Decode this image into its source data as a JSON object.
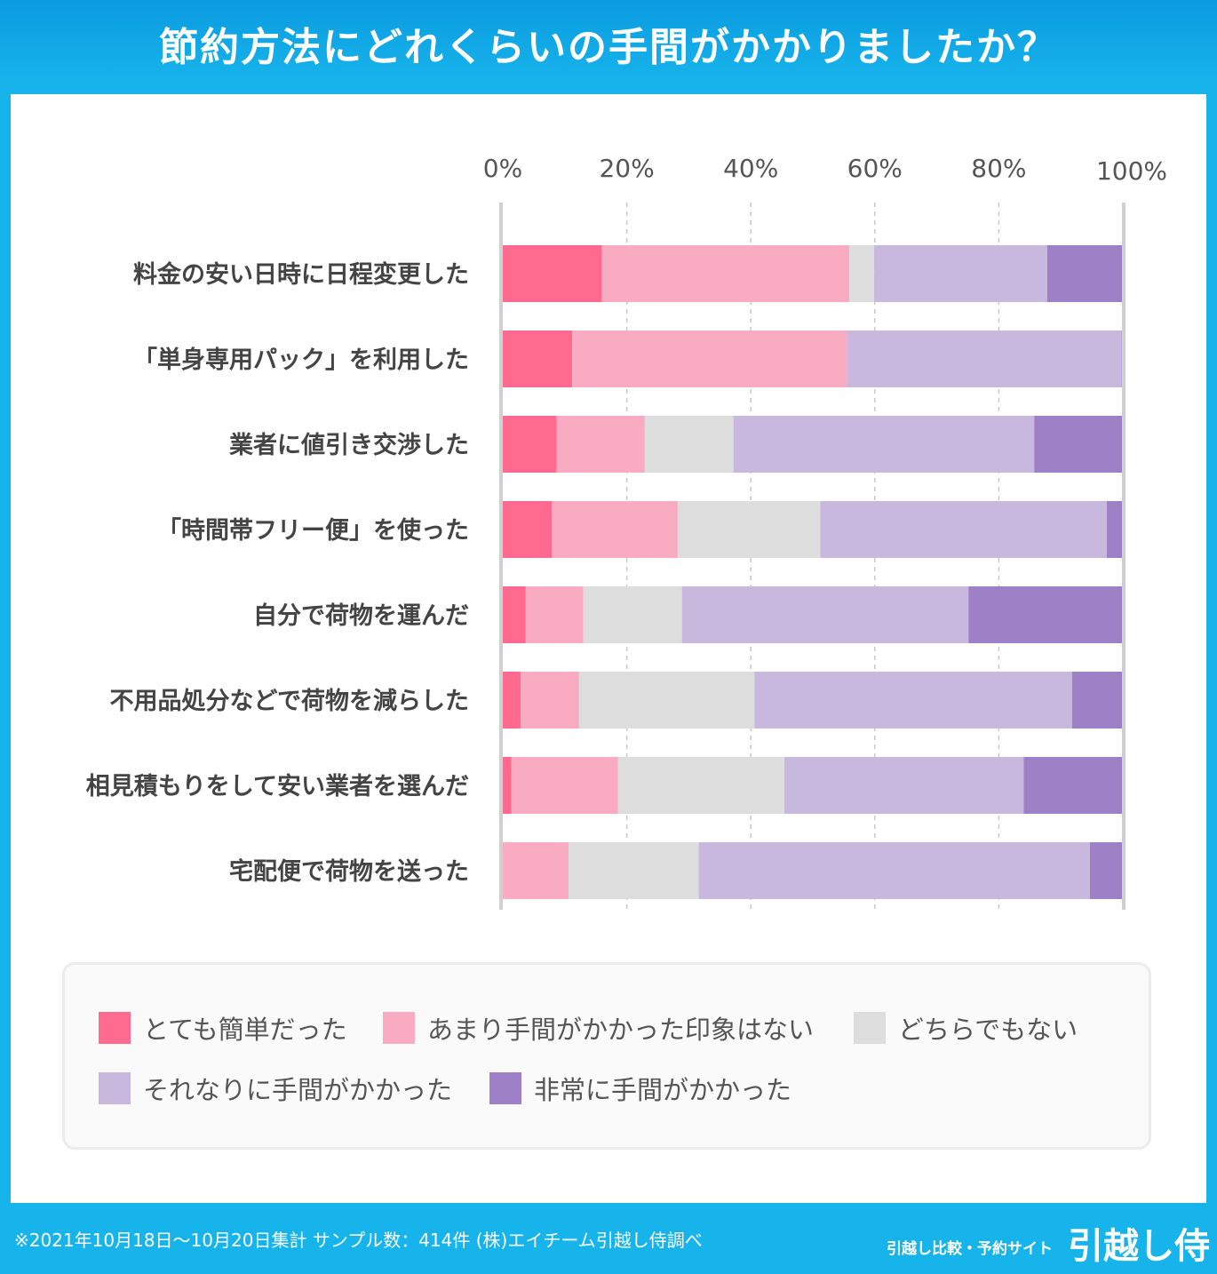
{
  "header": {
    "title": "節約方法にどれくらいの手間がかかりましたか？"
  },
  "chart_data": {
    "type": "bar",
    "orientation": "horizontal",
    "stacked": true,
    "categories": [
      "料金の安い日時に日程変更した",
      "「単身専用パック」を利用した",
      "業者に値引き交渉した",
      "「時間帯フリー便」を使った",
      "自分で荷物を運んだ",
      "不用品処分などで荷物を減らした",
      "相見積もりをして安い業者を選んだ",
      "宅配便で荷物を送った"
    ],
    "series": [
      {
        "name": "とても簡単だった",
        "color": "#ff6a8e",
        "values": [
          16.0,
          11.2,
          8.7,
          7.9,
          3.7,
          2.9,
          1.4,
          0.0
        ]
      },
      {
        "name": "あまり手間がかかった印象はない",
        "color": "#f9abc1",
        "values": [
          39.9,
          44.3,
          14.2,
          20.3,
          9.3,
          9.4,
          17.2,
          10.6
        ]
      },
      {
        "name": "どちらでもない",
        "color": "#dddddd",
        "values": [
          4.0,
          0.0,
          14.3,
          23.0,
          15.9,
          28.3,
          26.8,
          21.0
        ]
      },
      {
        "name": "それなりに手間がかかった",
        "color": "#c9b8de",
        "values": [
          27.9,
          44.3,
          48.5,
          46.2,
          46.2,
          51.2,
          38.6,
          63.1
        ]
      },
      {
        "name": "非常に手間がかかった",
        "color": "#9e80c6",
        "values": [
          12.2,
          0.2,
          14.3,
          2.6,
          24.8,
          8.2,
          15.9,
          5.3
        ]
      }
    ],
    "xlim": [
      0,
      100
    ],
    "xticks": [
      "0%",
      "20%",
      "40%",
      "60%",
      "80%",
      "100%"
    ],
    "grid": true,
    "legend_position": "bottom"
  },
  "footer": {
    "note": "※2021年10月18日〜10月20日集計 サンプル数：414件 (株)エイチーム引越し侍調べ",
    "brand_sub": "引越し比較・予約サイト",
    "brand": "引越し侍"
  }
}
